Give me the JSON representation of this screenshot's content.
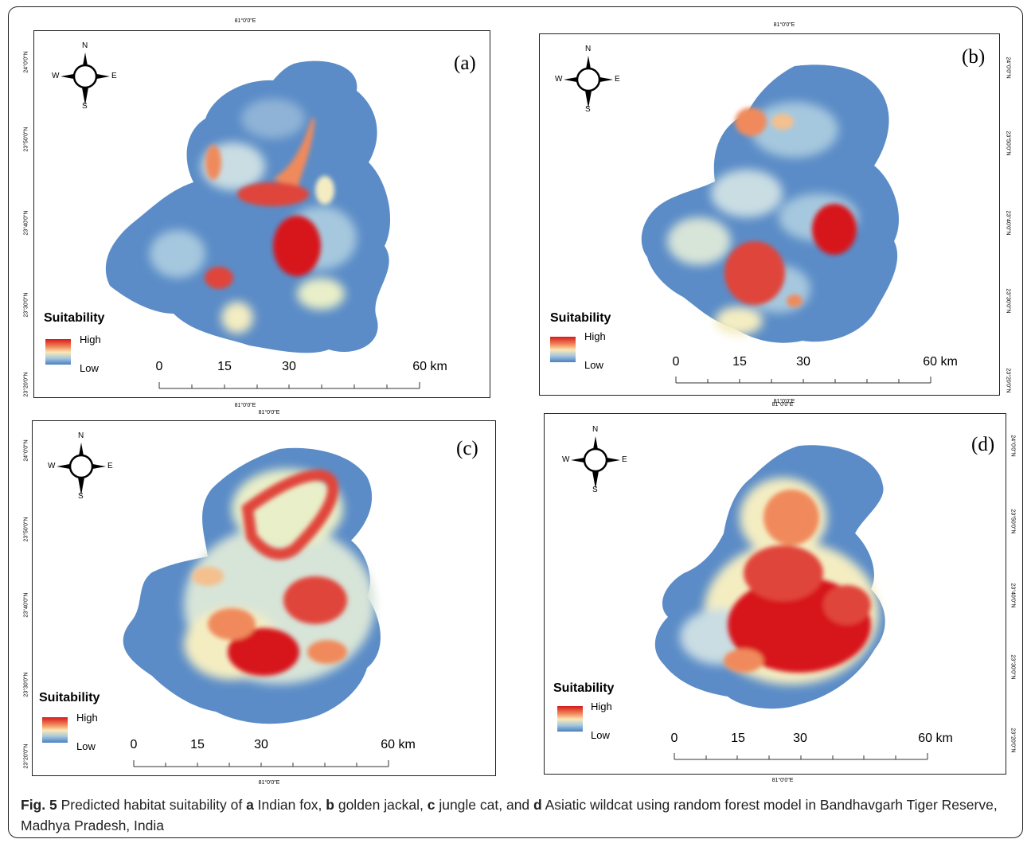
{
  "panels": [
    {
      "id": "a",
      "label": "(a)",
      "lon_top": "81°0'0\"E",
      "lon_bottom": "81°0'0\"E",
      "lats": [
        "24°0'0\"N",
        "23°50'0\"N",
        "23°40'0\"N",
        "23°30'0\"N",
        "23°20'0\"N"
      ],
      "lat_side": "left"
    },
    {
      "id": "b",
      "label": "(b)",
      "lon_top": "81°0'0\"E",
      "lon_bottom": "81°0'0\"E",
      "lats": [
        "24°0'0\"N",
        "23°50'0\"N",
        "23°40'0\"N",
        "23°30'0\"N",
        "23°20'0\"N"
      ],
      "lat_side": "right"
    },
    {
      "id": "c",
      "label": "(c)",
      "lon_top": "81°0'0\"E",
      "lon_bottom": "81°0'0\"E",
      "lats": [
        "24°0'0\"N",
        "23°50'0\"N",
        "23°40'0\"N",
        "23°30'0\"N",
        "23°20'0\"N"
      ],
      "lat_side": "left"
    },
    {
      "id": "d",
      "label": "(d)",
      "lon_top": "81°0'0\"E",
      "lon_bottom": "81°0'0\"E",
      "lats": [
        "24°0'0\"N",
        "23°50'0\"N",
        "23°40'0\"N",
        "23°30'0\"N",
        "23°20'0\"N"
      ],
      "lat_side": "right"
    }
  ],
  "compass": {
    "n": "N",
    "s": "S",
    "e": "E",
    "w": "W"
  },
  "legend": {
    "title": "Suitability",
    "high": "High",
    "low": "Low",
    "colors": {
      "high": "#d7191c",
      "mid": "#fbe7b5",
      "low": "#4a7fc0"
    }
  },
  "scalebar": {
    "labels": [
      "0",
      "15",
      "30",
      "60 km"
    ],
    "values_km": [
      0,
      15,
      30,
      60
    ]
  },
  "caption": {
    "fig": "Fig. 5",
    "intro": " Predicted habitat suitability of ",
    "a": "a",
    "a_text": " Indian fox, ",
    "b": "b",
    "b_text": " golden jackal, ",
    "c": "c",
    "c_text": " jungle cat, and ",
    "d": "d",
    "d_text": " Asiatic wildcat using random forest model in Bandhavgarh Tiger Reserve, Madhya Pradesh, India"
  }
}
